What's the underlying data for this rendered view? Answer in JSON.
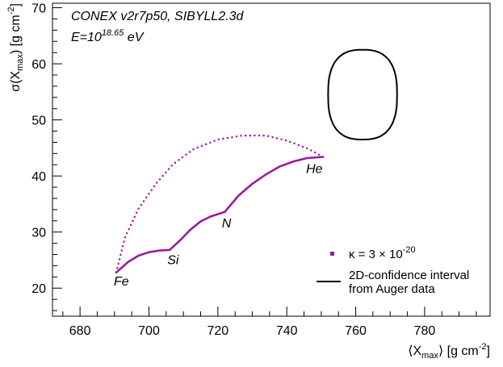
{
  "chart_data": {
    "type": "scatter",
    "title": "",
    "xlabel": {
      "pre": "⟨X",
      "sub": "max",
      "post": "⟩ [g cm",
      "sup": "-2",
      "end": "]"
    },
    "ylabel": {
      "pre": "σ(X",
      "sub": "max",
      "post": ") [g cm",
      "sup": "-2",
      "end": "]"
    },
    "xlim": [
      672,
      799
    ],
    "ylim": [
      15,
      70.8
    ],
    "xticks": [
      680,
      700,
      720,
      740,
      760,
      780
    ],
    "yticks": [
      20,
      30,
      40,
      50,
      60,
      70
    ],
    "grid": false,
    "info": {
      "line1": "CONEX v2r7p50, SIBYLL2.3d",
      "line2_pre": "E=10",
      "line2_sup": "18.65",
      "line2_post": " eV"
    },
    "series": [
      {
        "name": "κ = 3 × 10^-20",
        "kind": "points",
        "color": "#9b1b9b",
        "solid_segments": [
          [
            [
              690.5,
              22.8
            ],
            [
              694,
              24.7
            ],
            [
              697,
              25.8
            ],
            [
              700,
              26.4
            ],
            [
              703,
              26.7
            ],
            [
              706,
              26.8
            ]
          ],
          [
            [
              706,
              26.8
            ],
            [
              709,
              28.5
            ],
            [
              712,
              30.4
            ],
            [
              715,
              31.9
            ],
            [
              718,
              32.8
            ],
            [
              722,
              33.6
            ]
          ],
          [
            [
              722,
              33.6
            ],
            [
              726,
              36.5
            ],
            [
              730,
              38.6
            ],
            [
              734,
              40.3
            ],
            [
              738,
              41.7
            ],
            [
              742,
              42.6
            ],
            [
              746,
              43.2
            ],
            [
              750.5,
              43.4
            ]
          ]
        ],
        "dotted_arc": [
          [
            690.5,
            22.8
          ],
          [
            693,
            29
          ],
          [
            697,
            34.2
          ],
          [
            702,
            38.6
          ],
          [
            707,
            42.1
          ],
          [
            713,
            44.8
          ],
          [
            720,
            46.5
          ],
          [
            727,
            47.2
          ],
          [
            734,
            47.2
          ],
          [
            740,
            46.3
          ],
          [
            746,
            44.9
          ],
          [
            750.5,
            43.4
          ]
        ]
      },
      {
        "name": "2D-confidence interval from Auger data",
        "kind": "contour",
        "color": "#000000",
        "center": [
          762,
          54.5
        ],
        "half_width": [
          10,
          8
        ],
        "shape_exponent": 2.6
      }
    ],
    "annotations": [
      {
        "text": "Fe",
        "x": 692,
        "y": 20.5
      },
      {
        "text": "Si",
        "x": 707,
        "y": 24.3
      },
      {
        "text": "N",
        "x": 722.5,
        "y": 30.8
      },
      {
        "text": "He",
        "x": 748,
        "y": 40.5
      }
    ],
    "legend": {
      "position": "bottom-right",
      "entries": [
        {
          "label_pre": "κ = 3 × 10",
          "label_sup": "-20",
          "marker": "point",
          "color": "#9b1b9b"
        },
        {
          "label_line1": "2D-confidence interval",
          "label_line2": "from Auger data",
          "marker": "line",
          "color": "#000000"
        }
      ]
    }
  }
}
